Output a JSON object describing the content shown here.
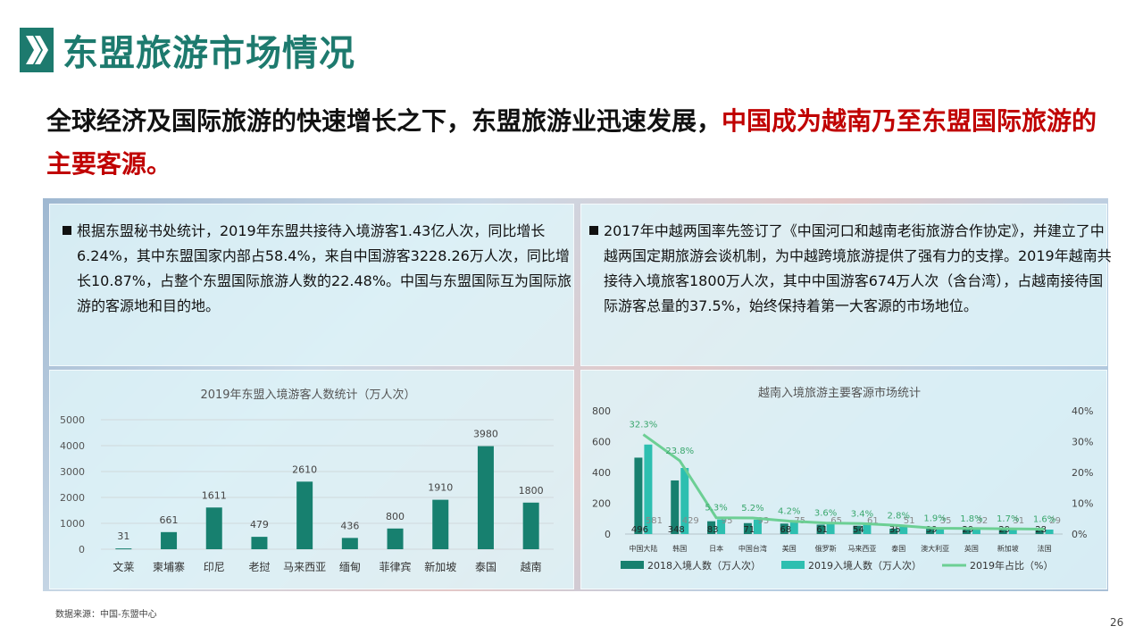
{
  "page": {
    "title": "东盟旅游市场情况",
    "headline_black": "全球经济及国际旅游的快速增长之下，东盟旅游业迅速发展，",
    "headline_red": "中国成为越南乃至东盟国际旅游的主要客源。",
    "source": "数据来源：中国-东盟中心",
    "page_number": "26"
  },
  "panels": {
    "left_text": "根据东盟秘书处统计，2019年东盟共接待入境游客1.43亿人次，同比增长6.24%，其中东盟国家内部占58.4%，来自中国游客3228.26万人次，同比增长10.87%，占整个东盟国际旅游人数的22.48%。中国与东盟国际互为国际旅游的客源地和目的地。",
    "right_text": "2017年中越两国率先签订了《中国河口和越南老街旅游合作协定》，并建立了中越两国定期旅游会谈机制，为中越跨境旅游提供了强有力的支撑。2019年越南共接待入境旅客1800万人次，其中中国游客674万人次（含台湾），占越南接待国际游客总量的37.5%，始终保持着第一大客源的市场地位。"
  },
  "colors": {
    "brand": "#1d7a6e",
    "accent_red": "#c00000",
    "bar_dark": "#17806f",
    "bar_light": "#2dbfb0",
    "line_green": "#6ccf94"
  },
  "chart_data": [
    {
      "type": "bar",
      "title": "2019年东盟入境游客人数统计（万人次）",
      "categories": [
        "文莱",
        "柬埔寨",
        "印尼",
        "老挝",
        "马来西亚",
        "缅甸",
        "菲律宾",
        "新加坡",
        "泰国",
        "越南"
      ],
      "values": [
        31,
        661,
        1611,
        479,
        2610,
        436,
        800,
        1910,
        3980,
        1800
      ],
      "ylim": [
        0,
        5000
      ],
      "yticks": [
        0,
        1000,
        2000,
        3000,
        4000,
        5000
      ],
      "data_labels": true,
      "legend": "none"
    },
    {
      "type": "bar",
      "title": "越南入境旅游主要客源市场统计",
      "categories": [
        "中国大陆",
        "韩国",
        "日本",
        "中国台湾",
        "美国",
        "俄罗斯",
        "马来西亚",
        "泰国",
        "澳大利亚",
        "英国",
        "新加坡",
        "法国"
      ],
      "series": [
        {
          "name": "2018入境人数（万人次）",
          "values": [
            496,
            348,
            83,
            71,
            68,
            61,
            54,
            35,
            39,
            29,
            29,
            28
          ]
        },
        {
          "name": "2019入境人数（万人次）",
          "values": [
            581,
            429,
            95,
            93,
            75,
            65,
            61,
            51,
            35,
            32,
            31,
            29
          ]
        },
        {
          "name": "2019年占比（%）",
          "type": "line",
          "axis": "right",
          "values": [
            32.3,
            23.8,
            5.3,
            5.2,
            4.2,
            3.6,
            3.4,
            2.8,
            1.9,
            1.8,
            1.7,
            1.6
          ],
          "labels": [
            "32.3%",
            "23.8%",
            "5.3%",
            "5.2%",
            "4.2%",
            "3.6%",
            "3.4%",
            "2.8%",
            "1.9%",
            "1.8%",
            "1.7%",
            "1.6%"
          ]
        }
      ],
      "ylim": [
        0,
        800
      ],
      "yticks": [
        0,
        200,
        400,
        600,
        800
      ],
      "y2lim": [
        0,
        40
      ],
      "y2ticks": [
        "0%",
        "10%",
        "20%",
        "30%",
        "40%"
      ],
      "legend": "bottom"
    }
  ]
}
